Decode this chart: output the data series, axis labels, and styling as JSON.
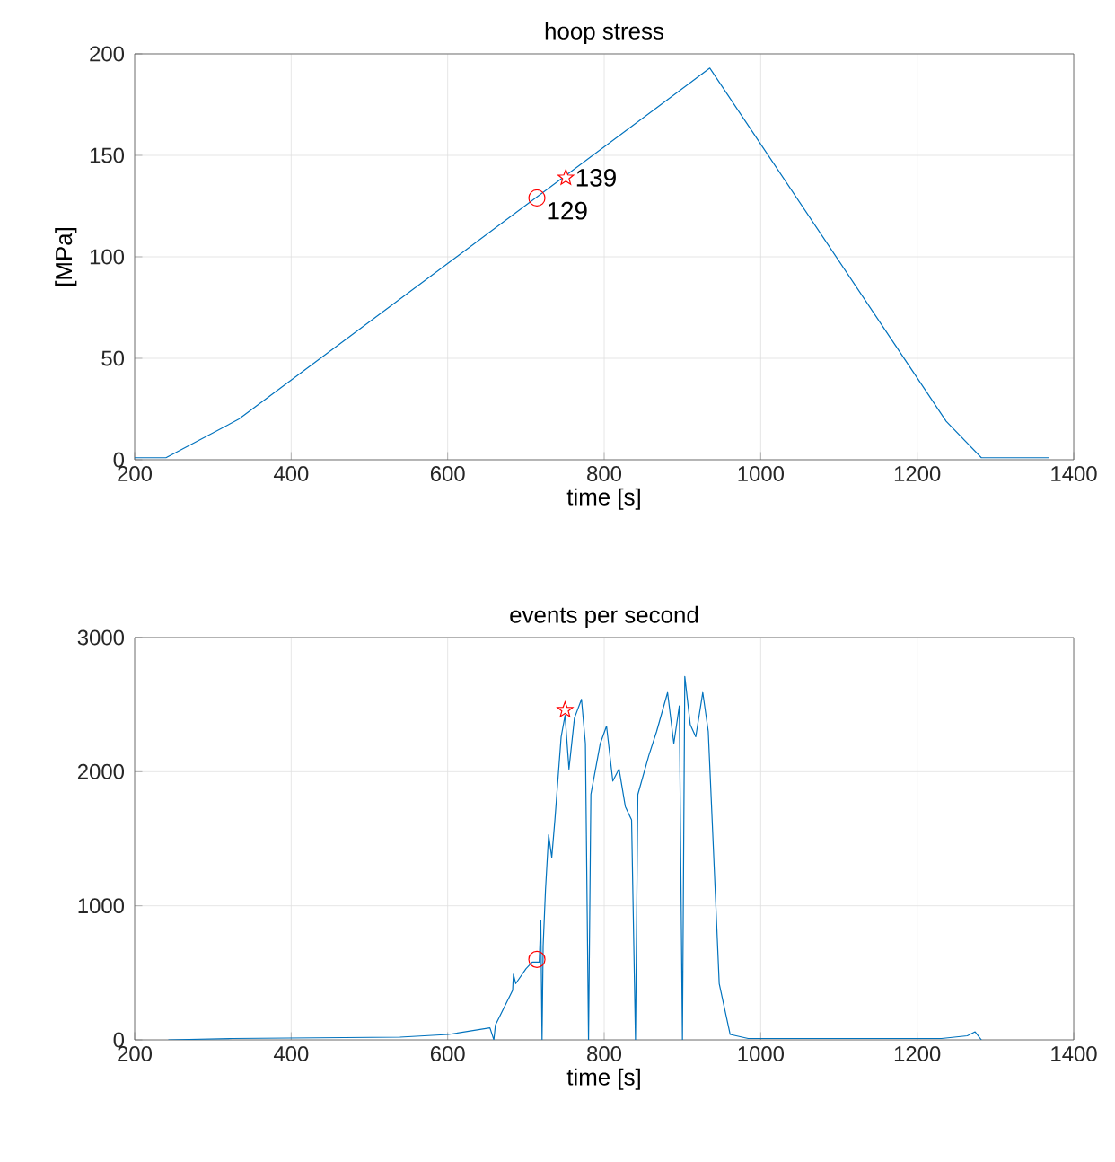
{
  "chart_data": [
    {
      "type": "line",
      "title": "hoop stress",
      "xlabel": "time [s]",
      "ylabel": "[MPa]",
      "xlim": [
        200,
        1400
      ],
      "ylim": [
        0,
        200
      ],
      "xticks": [
        200,
        400,
        600,
        800,
        1000,
        1200,
        1400
      ],
      "yticks": [
        0,
        50,
        100,
        150,
        200
      ],
      "grid": true,
      "series": [
        {
          "color": "#0072bd",
          "marker": "none",
          "x": [
            200,
            240,
            333,
            935,
            1237,
            1282,
            1369
          ],
          "values": [
            1,
            1,
            20,
            193,
            19,
            1,
            1
          ]
        },
        {
          "type": "scatter",
          "color": "#ff0000",
          "marker": "circle",
          "x": [
            714
          ],
          "values": [
            129
          ],
          "value_labels": [
            "129"
          ]
        },
        {
          "type": "scatter",
          "color": "#ff0000",
          "marker": "star",
          "x": [
            751
          ],
          "values": [
            139
          ],
          "value_labels": [
            "139"
          ]
        }
      ]
    },
    {
      "type": "line",
      "title": "events per second",
      "xlabel": "time [s]",
      "xlim": [
        200,
        1400
      ],
      "ylim": [
        0,
        3000
      ],
      "xticks": [
        200,
        400,
        600,
        800,
        1000,
        1200,
        1400
      ],
      "yticks": [
        0,
        1000,
        2000,
        3000
      ],
      "grid": true,
      "series": [
        {
          "color": "#0072bd",
          "marker": "none",
          "x": [
            243,
            325,
            539,
            601,
            654,
            659,
            661,
            683,
            684,
            687,
            700,
            708,
            717,
            719,
            720.6,
            722,
            725,
            729,
            733,
            737,
            745,
            750,
            755,
            762,
            771,
            776,
            780,
            783,
            795,
            803,
            811,
            819,
            827,
            835,
            840,
            843,
            857,
            867,
            881,
            889,
            896,
            900,
            903,
            910,
            917,
            926,
            933,
            939,
            947,
            961,
            984,
            1231,
            1264,
            1274,
            1282
          ],
          "values": [
            0,
            10,
            20,
            40,
            90,
            0,
            110,
            370,
            490,
            420,
            530,
            580,
            580,
            890,
            0,
            700,
            1120,
            1530,
            1360,
            1640,
            2260,
            2420,
            2020,
            2400,
            2540,
            2210,
            0,
            1830,
            2210,
            2340,
            1930,
            2020,
            1740,
            1640,
            0,
            1830,
            2120,
            2300,
            2590,
            2210,
            2490,
            0,
            2710,
            2350,
            2260,
            2590,
            2300,
            1500,
            420,
            40,
            10,
            10,
            30,
            60,
            0
          ]
        },
        {
          "type": "scatter",
          "color": "#ff0000",
          "marker": "circle",
          "x": [
            714
          ],
          "values": [
            600
          ]
        },
        {
          "type": "scatter",
          "color": "#ff0000",
          "marker": "star",
          "x": [
            750
          ],
          "values": [
            2460
          ]
        }
      ]
    }
  ]
}
